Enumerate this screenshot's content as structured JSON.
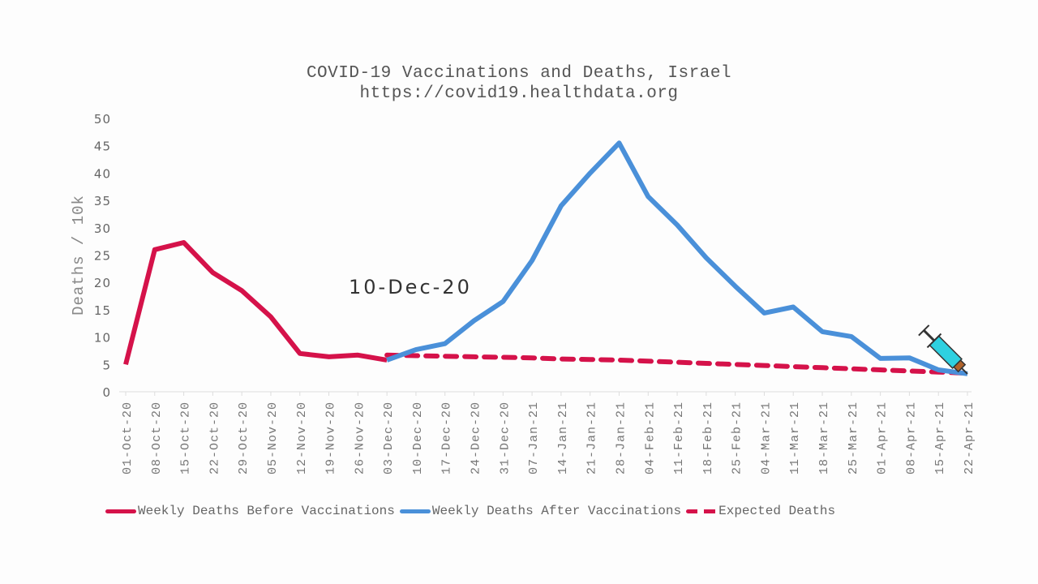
{
  "chart_data": {
    "type": "line",
    "title": "COVID-19 Vaccinations and Deaths, Israel",
    "subtitle": "https://covid19.healthdata.org",
    "xlabel": "",
    "ylabel": "Deaths / 10k",
    "ylim": [
      0,
      50
    ],
    "yticks": [
      0,
      5,
      10,
      15,
      20,
      25,
      30,
      35,
      40,
      45,
      50
    ],
    "grid": false,
    "legend_position": "bottom",
    "annotation": "10-Dec-20",
    "categories": [
      "01-Oct-20",
      "08-Oct-20",
      "15-Oct-20",
      "22-Oct-20",
      "29-Oct-20",
      "05-Nov-20",
      "12-Nov-20",
      "19-Nov-20",
      "26-Nov-20",
      "03-Dec-20",
      "10-Dec-20",
      "17-Dec-20",
      "24-Dec-20",
      "31-Dec-20",
      "07-Jan-21",
      "14-Jan-21",
      "21-Jan-21",
      "28-Jan-21",
      "04-Feb-21",
      "11-Feb-21",
      "18-Feb-21",
      "25-Feb-21",
      "04-Mar-21",
      "11-Mar-21",
      "18-Mar-21",
      "25-Mar-21",
      "01-Apr-21",
      "08-Apr-21",
      "15-Apr-21",
      "22-Apr-21"
    ],
    "series": [
      {
        "name": "Weekly Deaths Before Vaccinations",
        "color": "#d5124a",
        "style": "solid",
        "values": [
          5,
          26,
          27.3,
          21.8,
          18.5,
          13.7,
          7,
          6.4,
          6.7,
          5.8,
          null,
          null,
          null,
          null,
          null,
          null,
          null,
          null,
          null,
          null,
          null,
          null,
          null,
          null,
          null,
          null,
          null,
          null,
          null,
          null
        ]
      },
      {
        "name": "Weekly Deaths After Vaccinations",
        "color": "#4a90d9",
        "style": "solid",
        "values": [
          null,
          null,
          null,
          null,
          null,
          null,
          null,
          null,
          null,
          5.8,
          7.7,
          8.8,
          13,
          16.5,
          24,
          34,
          40,
          45.5,
          35.7,
          30.5,
          24.5,
          19.3,
          14.4,
          15.5,
          11,
          10.1,
          6.1,
          6.2,
          4,
          3.3
        ]
      },
      {
        "name": "Expected Deaths",
        "color": "#d5124a",
        "style": "dashed",
        "values": [
          null,
          null,
          null,
          null,
          null,
          null,
          null,
          null,
          null,
          6.7,
          6.6,
          6.5,
          6.4,
          6.3,
          6.2,
          6.0,
          5.9,
          5.8,
          5.6,
          5.4,
          5.2,
          5.0,
          4.8,
          4.6,
          4.4,
          4.2,
          4.0,
          3.8,
          3.6,
          3.4
        ]
      }
    ]
  },
  "icons": {
    "marker": "syringe-icon"
  }
}
